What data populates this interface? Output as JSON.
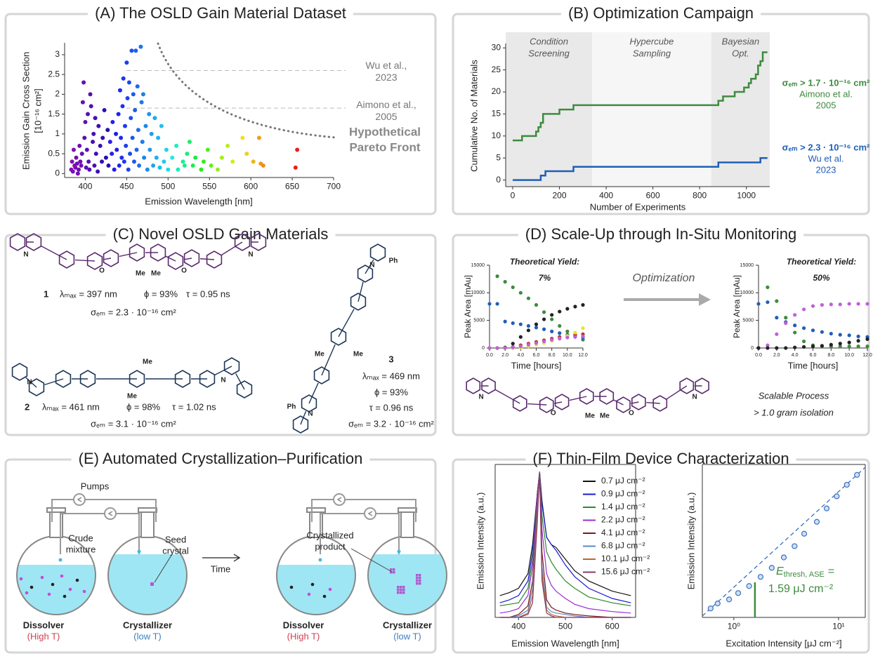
{
  "panels": {
    "A": {
      "title": "(A)  The OSLD Gain Material Dataset",
      "type": "scatter",
      "x_label": "Emission Wavelength [nm]",
      "y_label": [
        "Emission Gain Cross Section",
        "[10⁻¹⁶ cm²]"
      ],
      "xlim": [
        375,
        700
      ],
      "ylim": [
        -0.1,
        3.3
      ],
      "xticks": [
        400,
        450,
        500,
        550,
        600,
        650,
        700
      ],
      "yticks": [
        0,
        0.5,
        1,
        1.5,
        2,
        2.5,
        3
      ],
      "x": [
        383,
        384,
        385,
        386,
        387,
        388,
        389,
        390,
        391,
        392,
        393,
        394,
        395,
        396,
        397,
        398,
        399,
        400,
        401,
        402,
        403,
        404,
        405,
        406,
        407,
        409,
        410,
        411,
        412,
        413,
        415,
        416,
        418,
        420,
        421,
        423,
        425,
        427,
        428,
        430,
        432,
        433,
        435,
        437,
        438,
        440,
        441,
        442,
        443,
        444,
        445,
        446,
        447,
        448,
        449,
        450,
        451,
        452,
        453,
        454,
        455,
        456,
        457,
        458,
        459,
        460,
        461,
        462,
        463,
        464,
        465,
        467,
        468,
        469,
        470,
        471,
        473,
        475,
        477,
        478,
        480,
        482,
        484,
        486,
        488,
        490,
        492,
        495,
        498,
        500,
        505,
        510,
        512,
        518,
        520,
        523,
        526,
        530,
        533,
        540,
        543,
        548,
        552,
        560,
        565,
        572,
        578,
        590,
        595,
        603,
        610,
        612,
        615,
        654,
        656
      ],
      "y": [
        0.1,
        0.3,
        0.05,
        0.6,
        0.2,
        0.15,
        0.4,
        0.25,
        0,
        0.1,
        0.7,
        0.3,
        0.2,
        0.5,
        1.8,
        2.3,
        0.9,
        1.3,
        0.15,
        0.6,
        1.5,
        0.3,
        0.1,
        2,
        1.7,
        0.8,
        1,
        0.2,
        1.4,
        0.5,
        0.05,
        1.2,
        0.7,
        0.3,
        0.9,
        1.6,
        0.4,
        1.1,
        0.2,
        0.8,
        0.5,
        1.3,
        0.1,
        1,
        0.6,
        1.5,
        0.2,
        2.1,
        0.9,
        0.4,
        1.7,
        2.4,
        0.3,
        1.2,
        0.7,
        2.8,
        1.9,
        0.1,
        2.3,
        0.5,
        1.4,
        3.1,
        0.9,
        2,
        0.3,
        1.6,
        3.1,
        0.6,
        2.2,
        1.1,
        0.2,
        3.2,
        1.8,
        0.8,
        2,
        0.4,
        1.2,
        0.1,
        1.5,
        0.6,
        1,
        0.2,
        1.4,
        0.4,
        0.9,
        0.15,
        1.2,
        0.3,
        0.6,
        0.1,
        0.4,
        0.7,
        0.1,
        0.3,
        0.2,
        0.5,
        0.8,
        0.2,
        0.4,
        0.1,
        0.3,
        0.6,
        0.2,
        0.1,
        0.4,
        0.7,
        0.3,
        0.9,
        0.5,
        0.3,
        0.9,
        0.25,
        0.2,
        0.15,
        0.6
      ],
      "reference_lines": [
        {
          "value": 2.6,
          "label": [
            "Wu et al.,",
            "2023"
          ]
        },
        {
          "value": 1.65,
          "label": [
            "Aimono et al.,",
            "2005"
          ]
        }
      ],
      "pareto_label": [
        "Hypothetical",
        "Pareto Front"
      ]
    },
    "B": {
      "title": "(B)  Optimization Campaign",
      "type": "line",
      "step": true,
      "x_label": "Number of Experiments",
      "y_label": "Cumulative No. of Materials",
      "xlim": [
        -30,
        1100
      ],
      "ylim": [
        -1.5,
        31
      ],
      "xticks": [
        0,
        200,
        400,
        600,
        800,
        1000
      ],
      "yticks": [
        0,
        5,
        10,
        15,
        20,
        25,
        30
      ],
      "region_bounds": [
        340,
        850
      ],
      "regions": [
        [
          "Condition",
          "Screening"
        ],
        [
          "Hypercube",
          "Sampling"
        ],
        [
          "Bayesian",
          "Opt."
        ]
      ],
      "series": [
        {
          "name": [
            "σₑₘ > 1.7 · 10⁻¹⁶ cm²",
            "Aimono et al.",
            "2005"
          ],
          "color": "#3f8a3f",
          "x": [
            0,
            40,
            100,
            110,
            120,
            130,
            160,
            200,
            260,
            850,
            880,
            900,
            950,
            990,
            1010,
            1020,
            1040,
            1050,
            1060,
            1070,
            1090
          ],
          "values": [
            9,
            10,
            11,
            12,
            13,
            15,
            15,
            16,
            17,
            17,
            18,
            19,
            20,
            21,
            22,
            23,
            24,
            26,
            27,
            29,
            29
          ]
        },
        {
          "name": [
            "σₑₘ > 2.3 · 10⁻¹⁶ cm²",
            "Wu et al.",
            "2023"
          ],
          "color": "#1f5fb8",
          "x": [
            0,
            120,
            140,
            260,
            880,
            1060,
            1090
          ],
          "values": [
            0,
            1,
            2,
            3,
            4,
            5,
            5
          ]
        }
      ]
    },
    "C": {
      "title": "(C)  Novel OSLD Gain Materials",
      "compounds": [
        {
          "number": "1",
          "properties": [
            "λₘₐₓ = 397 nm",
            "ϕ = 93%",
            "τ = 0.95 ns"
          ],
          "cross_section": "σₑₘ = 2.3 · 10⁻¹⁶ cm²",
          "color": "#5a2a6e",
          "atom_labels": [
            "N",
            "O",
            "O",
            "N",
            "Me",
            "Me"
          ]
        },
        {
          "number": "2",
          "properties": [
            "λₘₐₓ = 461 nm",
            "ϕ = 98%",
            "τ = 1.02 ns"
          ],
          "cross_section": "σₑₘ = 3.1 · 10⁻¹⁶ cm²",
          "color": "#1d3557",
          "atom_labels": [
            "N",
            "Me",
            "Me",
            "N"
          ]
        },
        {
          "number": "3",
          "properties": [
            "λₘₐₓ = 469 nm",
            "ϕ = 93%",
            "τ = 0.96 ns"
          ],
          "cross_section": "σₑₘ = 3.2 · 10⁻¹⁶ cm²",
          "color": "#1d3557",
          "atom_labels": [
            "N",
            "Ph",
            "Me",
            "Me",
            "N",
            "Ph"
          ]
        }
      ]
    },
    "D": {
      "title": "(D)  Scale-Up through In-Situ Monitoring",
      "arrow_label": "Optimization",
      "notes": [
        "Scalable Process",
        "> 1.0 gram isolation"
      ],
      "charts": [
        {
          "annotation": [
            "Theoretical Yield:",
            "7%"
          ],
          "x_label": "Time [hours]",
          "y_label": "Peak Area [mAu]",
          "xlim": [
            0,
            12
          ],
          "ylim": [
            0,
            15000
          ],
          "xticks": [
            {
              "value": 0,
              "label": "0.0"
            },
            {
              "value": 2,
              "label": "2.0"
            },
            {
              "value": 4,
              "label": "4.0"
            },
            {
              "value": 6,
              "label": "6.0"
            },
            {
              "value": 8,
              "label": "8.0"
            },
            {
              "value": 10,
              "label": "10.0"
            },
            {
              "value": 12,
              "label": "12.0"
            }
          ],
          "yticks": [
            0,
            5000,
            10000,
            15000
          ],
          "x": [
            0,
            1,
            2,
            3,
            4,
            5,
            6,
            7,
            8,
            9,
            10,
            11,
            12
          ],
          "series": [
            {
              "color": "#3f8a3f",
              "values": [
                null,
                13000,
                12000,
                11000,
                10000,
                9000,
                7800,
                6500,
                5200,
                4000,
                3000,
                2200,
                1500
              ]
            },
            {
              "color": "#1f5fb8",
              "values": [
                8000,
                8000,
                4800,
                4500,
                4300,
                4000,
                3700,
                3400,
                3000,
                2700,
                2400,
                2100,
                1900
              ]
            },
            {
              "color": "#222222",
              "values": [
                0,
                0,
                100,
                800,
                2000,
                3200,
                4300,
                5200,
                6000,
                6600,
                7100,
                7500,
                7800
              ]
            },
            {
              "color": "#b83030",
              "values": [
                0,
                0,
                0,
                200,
                500,
                800,
                1100,
                1400,
                1700,
                2000,
                2200,
                2400,
                2500
              ]
            },
            {
              "color": "#e6e62a",
              "values": [
                0,
                0,
                0,
                0,
                100,
                300,
                600,
                900,
                1300,
                1700,
                2200,
                2800,
                3600
              ]
            },
            {
              "color": "#c060d8",
              "values": [
                0,
                0,
                0,
                100,
                300,
                600,
                900,
                1200,
                1500,
                1700,
                1900,
                2000,
                2100
              ]
            }
          ]
        },
        {
          "annotation": [
            "Theoretical Yield:",
            "50%"
          ],
          "x_label": "Time [hours]",
          "y_label": "Peak Area [mAu]",
          "xlim": [
            0,
            12
          ],
          "ylim": [
            0,
            15000
          ],
          "xticks": [
            {
              "value": 0,
              "label": "0.0"
            },
            {
              "value": 2,
              "label": "2.0"
            },
            {
              "value": 4,
              "label": "4.0"
            },
            {
              "value": 6,
              "label": "6.0"
            },
            {
              "value": 8,
              "label": "8.0"
            },
            {
              "value": 10,
              "label": "10.0"
            },
            {
              "value": 12,
              "label": "12.0"
            }
          ],
          "yticks": [
            0,
            5000,
            10000,
            15000
          ],
          "x": [
            0,
            1,
            2,
            3,
            4,
            5,
            6,
            7,
            8,
            9,
            10,
            11,
            12
          ],
          "series": [
            {
              "color": "#3f8a3f",
              "values": [
                null,
                11000,
                8500,
                5500,
                2800,
                1200,
                500,
                300,
                300,
                300,
                300,
                300,
                300
              ]
            },
            {
              "color": "#1f5fb8",
              "values": [
                8000,
                8300,
                5500,
                4700,
                4100,
                3600,
                3200,
                2900,
                2600,
                2400,
                2300,
                2100,
                2000
              ]
            },
            {
              "color": "#c060d8",
              "values": [
                0,
                500,
                2500,
                4500,
                6000,
                7000,
                7600,
                7800,
                7900,
                7900,
                8000,
                8000,
                8000
              ]
            },
            {
              "color": "#222222",
              "values": [
                0,
                0,
                0,
                0,
                100,
                200,
                300,
                400,
                600,
                800,
                1000,
                1300,
                1600
              ]
            }
          ]
        }
      ]
    },
    "E": {
      "title": "(E)  Automated Crystallization–Purification",
      "pumps": "Pumps",
      "time": "Time",
      "crude_note": [
        "Crude",
        "mixture"
      ],
      "seed_note": [
        "Seed",
        "crystal"
      ],
      "product_note": [
        "Crystallized",
        "product"
      ],
      "vessels": [
        {
          "name": "Dissolver",
          "temp": "(High T)"
        },
        {
          "name": "Crystallizer",
          "temp": "(low T)"
        }
      ]
    },
    "F": {
      "title": "(F)  Thin-Film Device Characterization",
      "spectra": {
        "x_label": "Emission Wavelength [nm]",
        "y_label": "Emission Intensity (a.u.)",
        "xlim": [
          350,
          650
        ],
        "ylim": [
          0,
          1.05
        ],
        "xticks": [
          400,
          500,
          600
        ],
        "x": [
          360,
          380,
          400,
          420,
          430,
          440,
          445,
          450,
          460,
          470,
          480,
          500,
          520,
          550,
          600,
          640
        ],
        "series": [
          {
            "name": "0.7  μJ cm⁻²",
            "color": "#111111",
            "values": [
              0.15,
              0.17,
              0.2,
              0.3,
              0.5,
              0.85,
              1,
              0.8,
              0.55,
              0.5,
              0.48,
              0.4,
              0.32,
              0.25,
              0.18,
              0.15
            ]
          },
          {
            "name": "0.9  μJ cm⁻²",
            "color": "#1a1ad0",
            "values": [
              0.1,
              0.12,
              0.15,
              0.25,
              0.45,
              0.85,
              1,
              0.78,
              0.55,
              0.5,
              0.46,
              0.36,
              0.28,
              0.2,
              0.13,
              0.1
            ]
          },
          {
            "name": "1.4  μJ cm⁻²",
            "color": "#2a8a2a",
            "values": [
              0.08,
              0.09,
              0.1,
              0.2,
              0.4,
              0.85,
              1,
              0.7,
              0.45,
              0.38,
              0.33,
              0.25,
              0.2,
              0.14,
              0.1,
              0.08
            ]
          },
          {
            "name": "2.2  μJ cm⁻²",
            "color": "#9a30d0",
            "values": [
              0.03,
              0.04,
              0.06,
              0.15,
              0.35,
              0.85,
              1,
              0.6,
              0.3,
              0.22,
              0.18,
              0.13,
              0.09,
              0.06,
              0.04,
              0.03
            ]
          },
          {
            "name": "4.1  μJ cm⁻²",
            "color": "#7a1a1a",
            "values": [
              0,
              0,
              0.02,
              0.08,
              0.25,
              0.8,
              1,
              0.45,
              0.12,
              0.07,
              0.05,
              0.03,
              0.02,
              0.01,
              0,
              0
            ]
          },
          {
            "name": "6.8  μJ cm⁻²",
            "color": "#5a8ac8",
            "values": [
              0,
              0,
              0.01,
              0.05,
              0.2,
              0.75,
              1,
              0.35,
              0.07,
              0.04,
              0.03,
              0.02,
              0.01,
              0,
              0,
              0
            ]
          },
          {
            "name": "10.1  μJ cm⁻²",
            "color": "#b86a30",
            "values": [
              0,
              0,
              0,
              0.03,
              0.15,
              0.7,
              1,
              0.3,
              0.05,
              0.02,
              0.01,
              0,
              0,
              0,
              0,
              0
            ]
          },
          {
            "name": "15.6  μJ cm⁻²",
            "color": "#8a3a6a",
            "values": [
              0,
              0,
              0,
              0.02,
              0.1,
              0.65,
              1,
              0.25,
              0.03,
              0.01,
              0,
              0,
              0,
              0,
              0,
              0
            ]
          }
        ]
      },
      "threshold_plot": {
        "x_label": "Excitation Intensity [μJ cm⁻²]",
        "y_label": "Emission Intensity (a.u.)",
        "xlog": true,
        "ylog": true,
        "xlim": [
          0.5,
          18
        ],
        "ylim": [
          0.8,
          800
        ],
        "xticks": [
          {
            "value": 1,
            "label": "10⁰"
          },
          {
            "value": 10,
            "label": "10¹"
          }
        ],
        "color": "#3a70c0",
        "x": [
          0.6,
          0.7,
          0.9,
          1.1,
          1.4,
          1.8,
          2.3,
          3.0,
          3.8,
          4.7,
          6.2,
          7.7,
          9.6,
          12,
          15
        ],
        "y": [
          1.2,
          1.5,
          1.8,
          2.4,
          3.3,
          5,
          7.5,
          12,
          20,
          35,
          60,
          110,
          190,
          320,
          500
        ],
        "threshold": {
          "symbol": "E",
          "subscript": "thresh, ASE",
          "equals": "=",
          "value": 1.59,
          "label": "1.59 μJ cm⁻²",
          "color": "#3f8a3f"
        }
      }
    }
  }
}
